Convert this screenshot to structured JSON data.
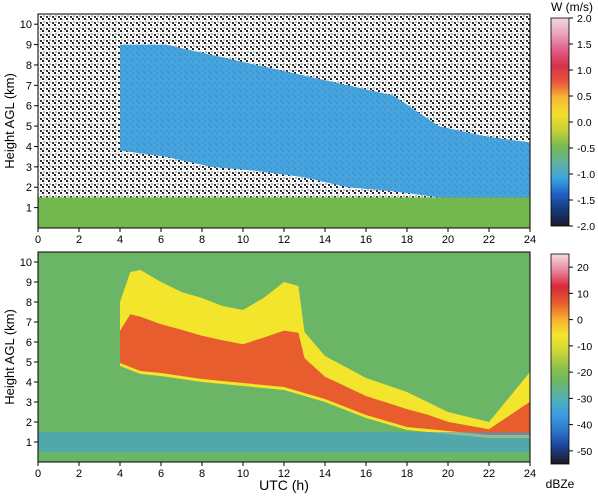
{
  "colors": {
    "velocity_colormap": [
      "#1b1b2e",
      "#143a78",
      "#1f63c4",
      "#3fa6e0",
      "#62b39a",
      "#7cba4f",
      "#c8cf3a",
      "#f2e12a",
      "#f7b733",
      "#e8573a",
      "#d7304a",
      "#e05d86",
      "#eaa3c1",
      "#f2d6e2"
    ],
    "reflectivity_colormap": [
      "#1a1a1a",
      "#1d3f91",
      "#2a74c8",
      "#3c9be0",
      "#52b0b8",
      "#6bb567",
      "#8ec34a",
      "#cfd43a",
      "#f7e52d",
      "#f6ad2f",
      "#e8582e",
      "#d62a3a",
      "#e9879d",
      "#f6d9e2"
    ],
    "background_green": "#6bb567"
  },
  "chart_data": [
    {
      "type": "heatmap",
      "title": "",
      "xlabel": "",
      "ylabel": "Height AGL (km)",
      "xlim": [
        0,
        24
      ],
      "ylim": [
        0,
        10.5
      ],
      "x_ticks": [
        "0",
        "2",
        "4",
        "6",
        "8",
        "10",
        "12",
        "14",
        "16",
        "18",
        "20",
        "22",
        "24"
      ],
      "y_ticks": [
        "1",
        "2",
        "3",
        "4",
        "5",
        "6",
        "7",
        "8",
        "9",
        "10"
      ],
      "colorbar": {
        "label": "W (m/s)",
        "range": [
          -2.0,
          2.0
        ],
        "ticks": [
          "2.0",
          "1.5",
          "1.0",
          "0.5",
          "0.0",
          "-0.5",
          "-1.0",
          "-1.5",
          "-2.0"
        ]
      },
      "features": {
        "cloud_region": {
          "x_start_h": 4,
          "x_end_h": 24,
          "top_km": [
            9,
            9,
            8.5,
            8,
            7.5,
            7,
            6.5,
            5,
            4.5,
            4.2
          ],
          "base_km": [
            3.8,
            3.5,
            3.0,
            2.8,
            2.5,
            2.0,
            1.8,
            1.5,
            1.2,
            1.0
          ]
        },
        "boundary_layer_top_km": 1.5,
        "noise_above_clouds": true
      }
    },
    {
      "type": "heatmap",
      "title": "",
      "xlabel": "UTC (h)",
      "ylabel": "Height AGL (km)",
      "xlim": [
        0,
        24
      ],
      "ylim": [
        0,
        10.5
      ],
      "x_ticks": [
        "0",
        "2",
        "4",
        "6",
        "8",
        "10",
        "12",
        "14",
        "16",
        "18",
        "20",
        "22",
        "24"
      ],
      "y_ticks": [
        "1",
        "2",
        "3",
        "4",
        "5",
        "6",
        "7",
        "8",
        "9",
        "10"
      ],
      "colorbar": {
        "label": "dBZe",
        "range": [
          -55,
          25
        ],
        "ticks": [
          "20",
          "10",
          "0",
          "-10",
          "-20",
          "-30",
          "-40",
          "-50"
        ]
      },
      "features": {
        "cloud_top_km": [
          [
            4,
            8.0
          ],
          [
            4.5,
            9.5
          ],
          [
            5,
            9.6
          ],
          [
            6,
            9.0
          ],
          [
            7,
            8.5
          ],
          [
            8,
            8.2
          ],
          [
            9,
            7.8
          ],
          [
            10,
            7.6
          ],
          [
            11,
            8.2
          ],
          [
            12,
            9.0
          ],
          [
            12.7,
            8.8
          ],
          [
            13,
            6.5
          ],
          [
            14,
            5.3
          ],
          [
            16,
            4.2
          ],
          [
            18,
            3.5
          ],
          [
            19,
            3.0
          ],
          [
            20,
            2.5
          ],
          [
            22,
            2.0
          ],
          [
            24,
            4.5
          ]
        ],
        "cloud_base_km": [
          [
            4,
            4.8
          ],
          [
            5,
            4.4
          ],
          [
            6,
            4.3
          ],
          [
            8,
            4.0
          ],
          [
            10,
            3.8
          ],
          [
            12,
            3.6
          ],
          [
            14,
            3.0
          ],
          [
            16,
            2.2
          ],
          [
            18,
            1.6
          ],
          [
            20,
            1.4
          ],
          [
            22,
            1.2
          ],
          [
            24,
            1.2
          ]
        ],
        "core_max_dbze": 15
      }
    }
  ]
}
